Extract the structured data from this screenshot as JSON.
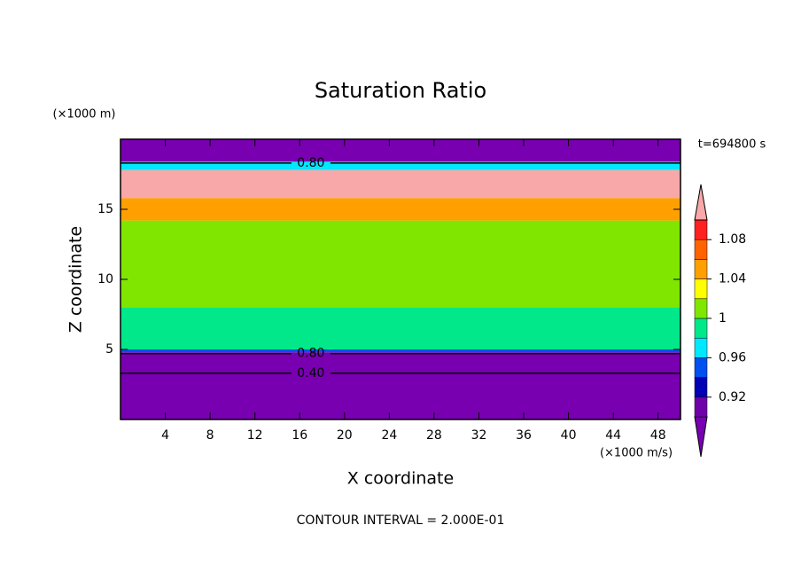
{
  "chart_data": {
    "type": "contour",
    "title": "Saturation Ratio",
    "y_unit": "(×1000 m)",
    "x_unit": "(×1000 m/s)",
    "time_label": "t=694800 s",
    "x_label": "X coordinate",
    "y_label": "Z coordinate",
    "footer": "CONTOUR INTERVAL = 2.000E-01",
    "xlim": [
      0,
      50
    ],
    "ylim": [
      0,
      20
    ],
    "xticks": [
      4,
      8,
      12,
      16,
      20,
      24,
      28,
      32,
      36,
      40,
      44,
      48
    ],
    "yticks": [
      5,
      10,
      15
    ],
    "layers": [
      {
        "zlim": [
          0,
          4.8
        ],
        "color": "#7800b0"
      },
      {
        "zlim": [
          4.8,
          5
        ],
        "color": "#0050f0"
      },
      {
        "zlim": [
          5,
          8
        ],
        "color": "#00e88a"
      },
      {
        "zlim": [
          8,
          14.2
        ],
        "color": "#80e600"
      },
      {
        "zlim": [
          14.2,
          15.8
        ],
        "color": "#ffa000"
      },
      {
        "zlim": [
          15.8,
          17.8
        ],
        "color": "#f8a8a8"
      },
      {
        "zlim": [
          17.8,
          18.4
        ],
        "color": "#00e8ff"
      },
      {
        "zlim": [
          18.4,
          20
        ],
        "color": "#7800b0"
      }
    ],
    "contours": [
      {
        "label": "0.80",
        "x": 17,
        "y": 18.3
      },
      {
        "label": "0.80",
        "x": 17,
        "y": 4.7
      },
      {
        "label": "0.40",
        "x": 17,
        "y": 3.3
      }
    ],
    "colorbar": {
      "bounds": [
        0.9,
        0.92,
        0.94,
        0.96,
        0.98,
        1,
        1.02,
        1.04,
        1.06,
        1.08,
        1.1
      ],
      "colors": [
        "#7800b0",
        "#7000a8",
        "#0000b4",
        "#0050f0",
        "#00e8ff",
        "#00e88a",
        "#80e600",
        "#ffff00",
        "#ffa000",
        "#ff6400",
        "#ff2020",
        "#f8a8a8"
      ],
      "ticks": [
        0.92,
        0.96,
        1,
        1.04,
        1.08
      ]
    }
  }
}
